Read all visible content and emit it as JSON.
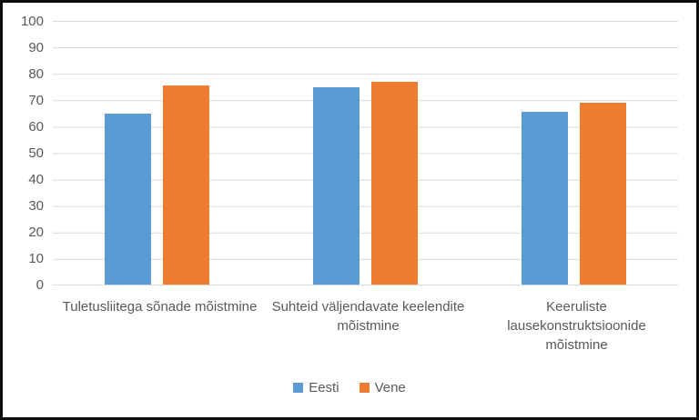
{
  "chart_data": {
    "type": "bar",
    "title": "",
    "xlabel": "",
    "ylabel": "",
    "ylim": [
      0,
      100
    ],
    "grid": "horizontal",
    "legend_position": "bottom",
    "y_ticks": [
      "100",
      "90",
      "80",
      "70",
      "60",
      "50",
      "40",
      "30",
      "20",
      "10",
      "0"
    ],
    "categories": [
      "Tuletusliitega sõnade mõistmine",
      "Suhteid väljendavate keelendite mõistmine",
      "Keeruliste lausekonstruktsioonide mõistmine"
    ],
    "series": [
      {
        "name": "Eesti",
        "color": "#5B9BD5",
        "values": [
          65,
          75,
          65.5
        ]
      },
      {
        "name": "Vene",
        "color": "#ED7D31",
        "values": [
          75.5,
          77,
          69
        ]
      }
    ]
  },
  "colors": {
    "axis_text": "#595959",
    "gridline": "#D9D9D9",
    "frame_border": "#0D0D0D",
    "background": "#FFFFFF"
  }
}
